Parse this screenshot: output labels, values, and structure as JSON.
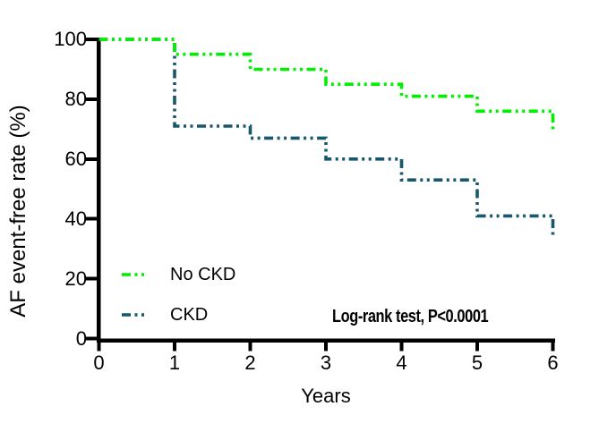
{
  "figure": {
    "background": "#ffffff",
    "axis_color": "#000000",
    "text_color": "#000000"
  },
  "chart_data": {
    "type": "line",
    "subtype": "kaplan_meier_step_survival",
    "title": "",
    "xlabel": "Years",
    "ylabel": "AF event-free rate (%)",
    "xlim": [
      0,
      6
    ],
    "ylim": [
      0,
      100
    ],
    "xticks": [
      0,
      1,
      2,
      3,
      4,
      5,
      6
    ],
    "yticks": [
      0,
      20,
      40,
      60,
      80,
      100
    ],
    "grid": "off",
    "line_style": "dash-dot-dot",
    "legend_position": "inside-lower-left",
    "annotation": "Log-rank test, P<0.0001",
    "series": [
      {
        "name": "No CKD",
        "color": "#00EE00",
        "points": [
          [
            0,
            100
          ],
          [
            1,
            100
          ],
          [
            1,
            95
          ],
          [
            2,
            95
          ],
          [
            2,
            90
          ],
          [
            3,
            90
          ],
          [
            3,
            85
          ],
          [
            4,
            85
          ],
          [
            4,
            81
          ],
          [
            5,
            81
          ],
          [
            5,
            76
          ],
          [
            6,
            76
          ],
          [
            6,
            69
          ]
        ]
      },
      {
        "name": "CKD",
        "color": "#17586E",
        "points": [
          [
            0,
            100
          ],
          [
            1,
            100
          ],
          [
            1,
            71
          ],
          [
            2,
            71
          ],
          [
            2,
            67
          ],
          [
            3,
            67
          ],
          [
            3,
            60
          ],
          [
            4,
            60
          ],
          [
            4,
            53
          ],
          [
            5,
            53
          ],
          [
            5,
            41
          ],
          [
            6,
            41
          ],
          [
            6,
            34
          ]
        ]
      }
    ],
    "legend": [
      {
        "label": "No CKD",
        "color": "#00EE00"
      },
      {
        "label": "CKD",
        "color": "#17586E"
      }
    ]
  }
}
